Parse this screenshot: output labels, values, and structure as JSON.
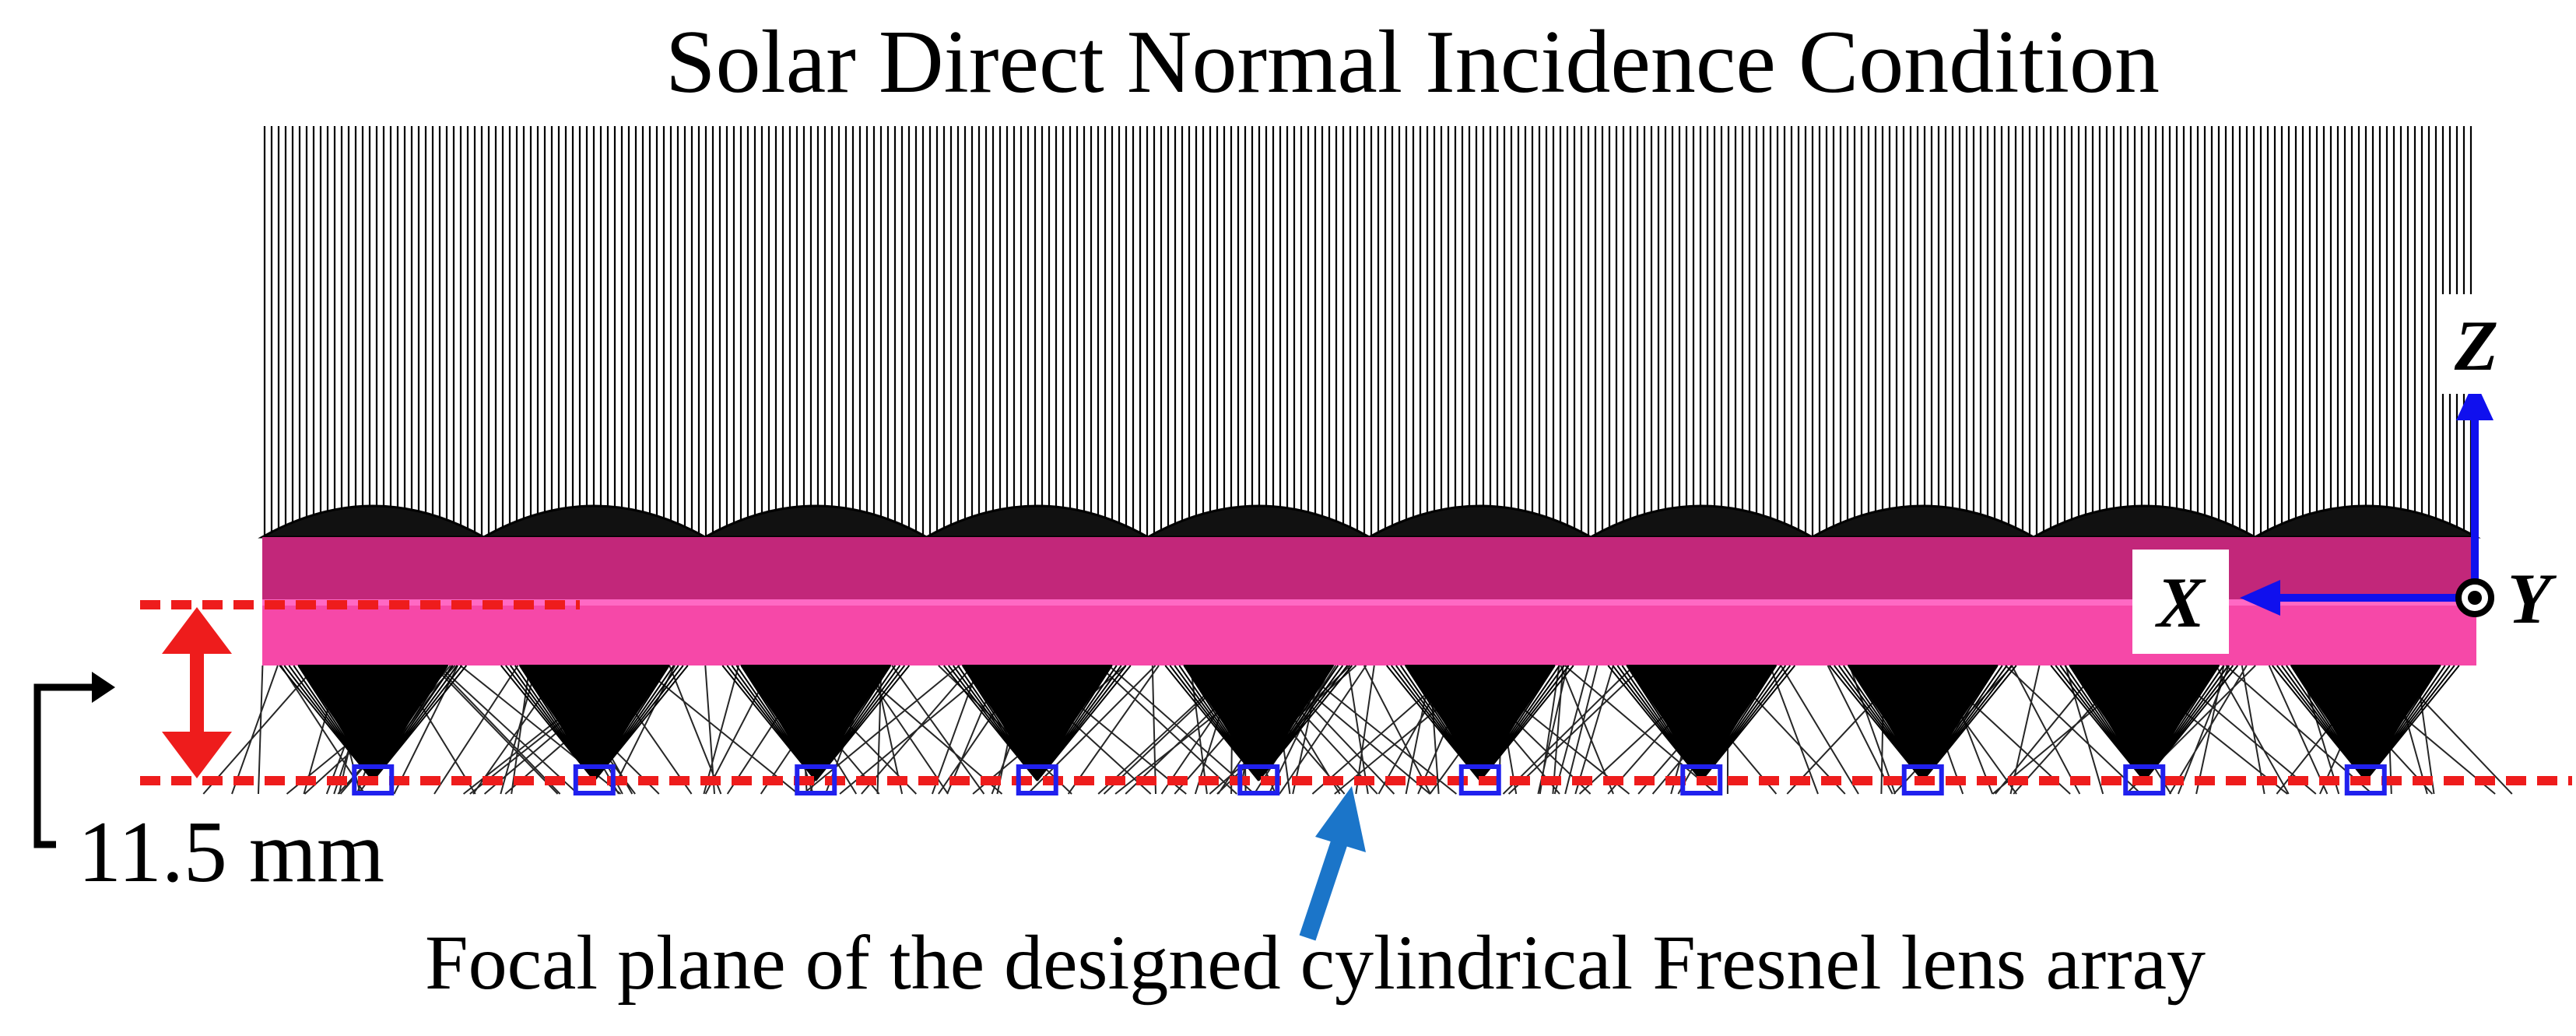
{
  "title": "Solar Direct Normal Incidence Condition",
  "dimension": {
    "label": "11.5 mm"
  },
  "annotation": {
    "text": "Focal plane of the designed cylindrical Fresnel lens array"
  },
  "axes": {
    "x_label": "X",
    "y_label": "Y",
    "z_label": "Z"
  },
  "lens_array": {
    "count": 10
  },
  "colors": {
    "rays": "#000000",
    "lens_band": "#c2277a",
    "lens_band_light": "#ff4fb0",
    "lens_midline": "#ff69c4",
    "dashed_guides": "#ee1c1c",
    "dimension_arrow": "#ee1c1c",
    "focal_markers": "#2020ee",
    "callout_arrow": "#1b75c9",
    "axis_arrows": "#1010ee"
  }
}
